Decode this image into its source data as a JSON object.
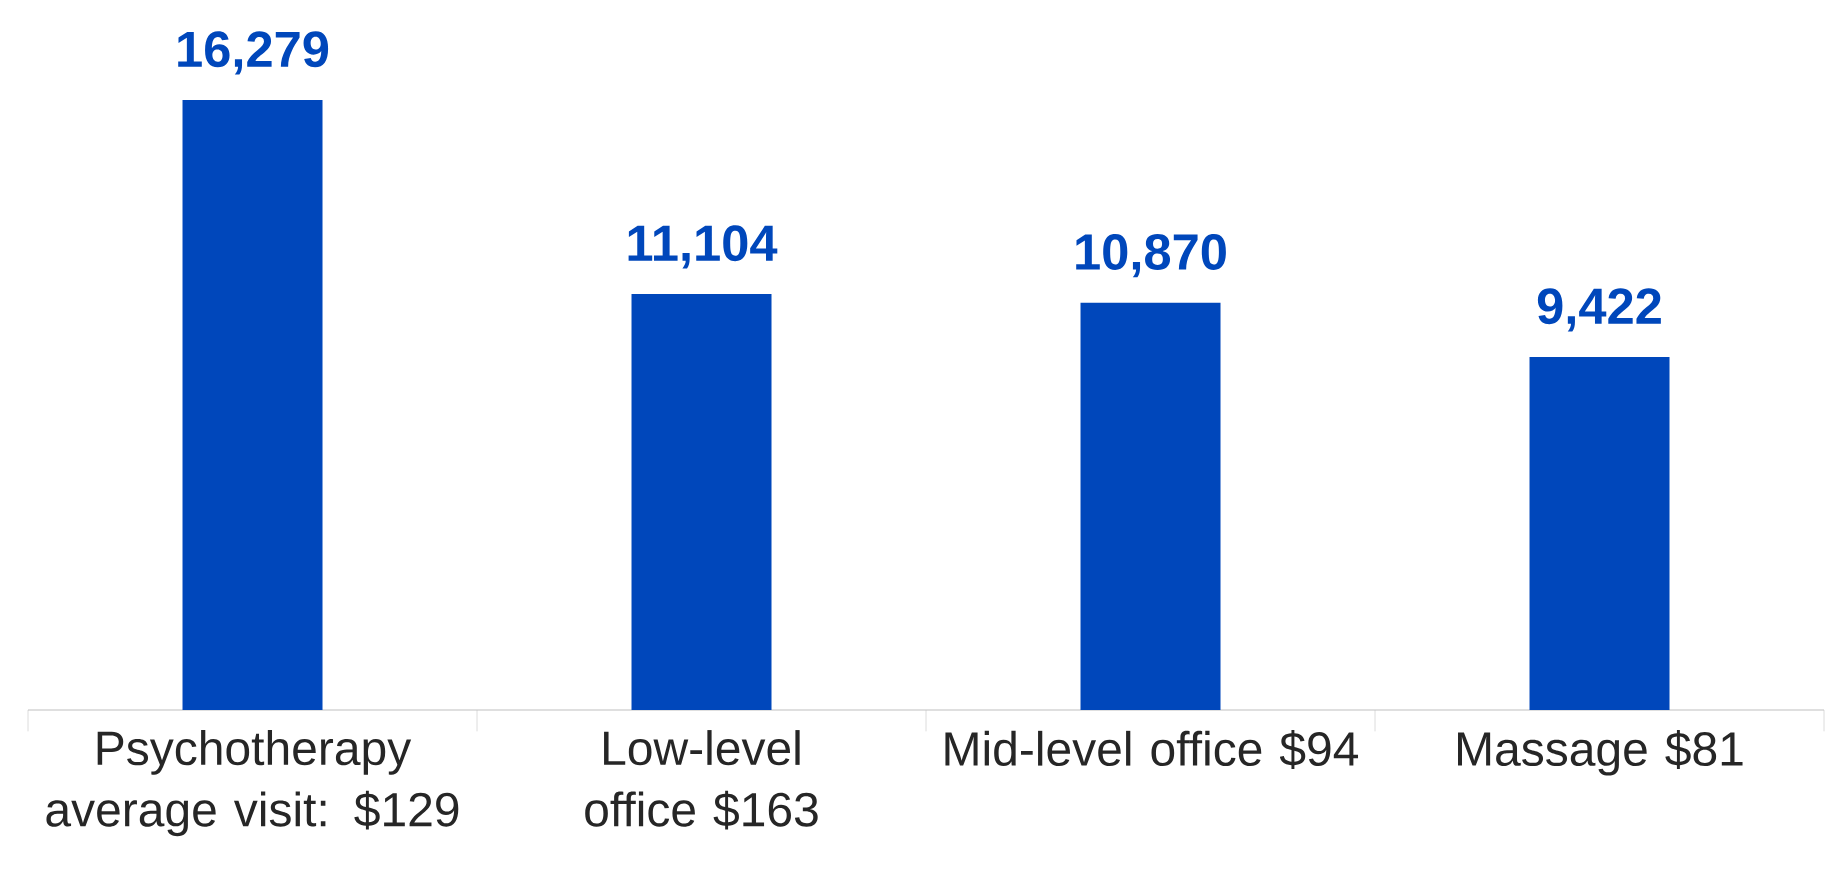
{
  "chart_data": {
    "type": "bar",
    "categories": [
      "Psychotherapy average visit: $129",
      "Low-level office $163",
      "Mid-level office $94",
      "Massage $81"
    ],
    "values": [
      16279,
      11104,
      10870,
      9422
    ],
    "color": "#0047bb",
    "value_labels": [
      "16,279",
      "11,104",
      "10,870",
      "9,422"
    ]
  }
}
